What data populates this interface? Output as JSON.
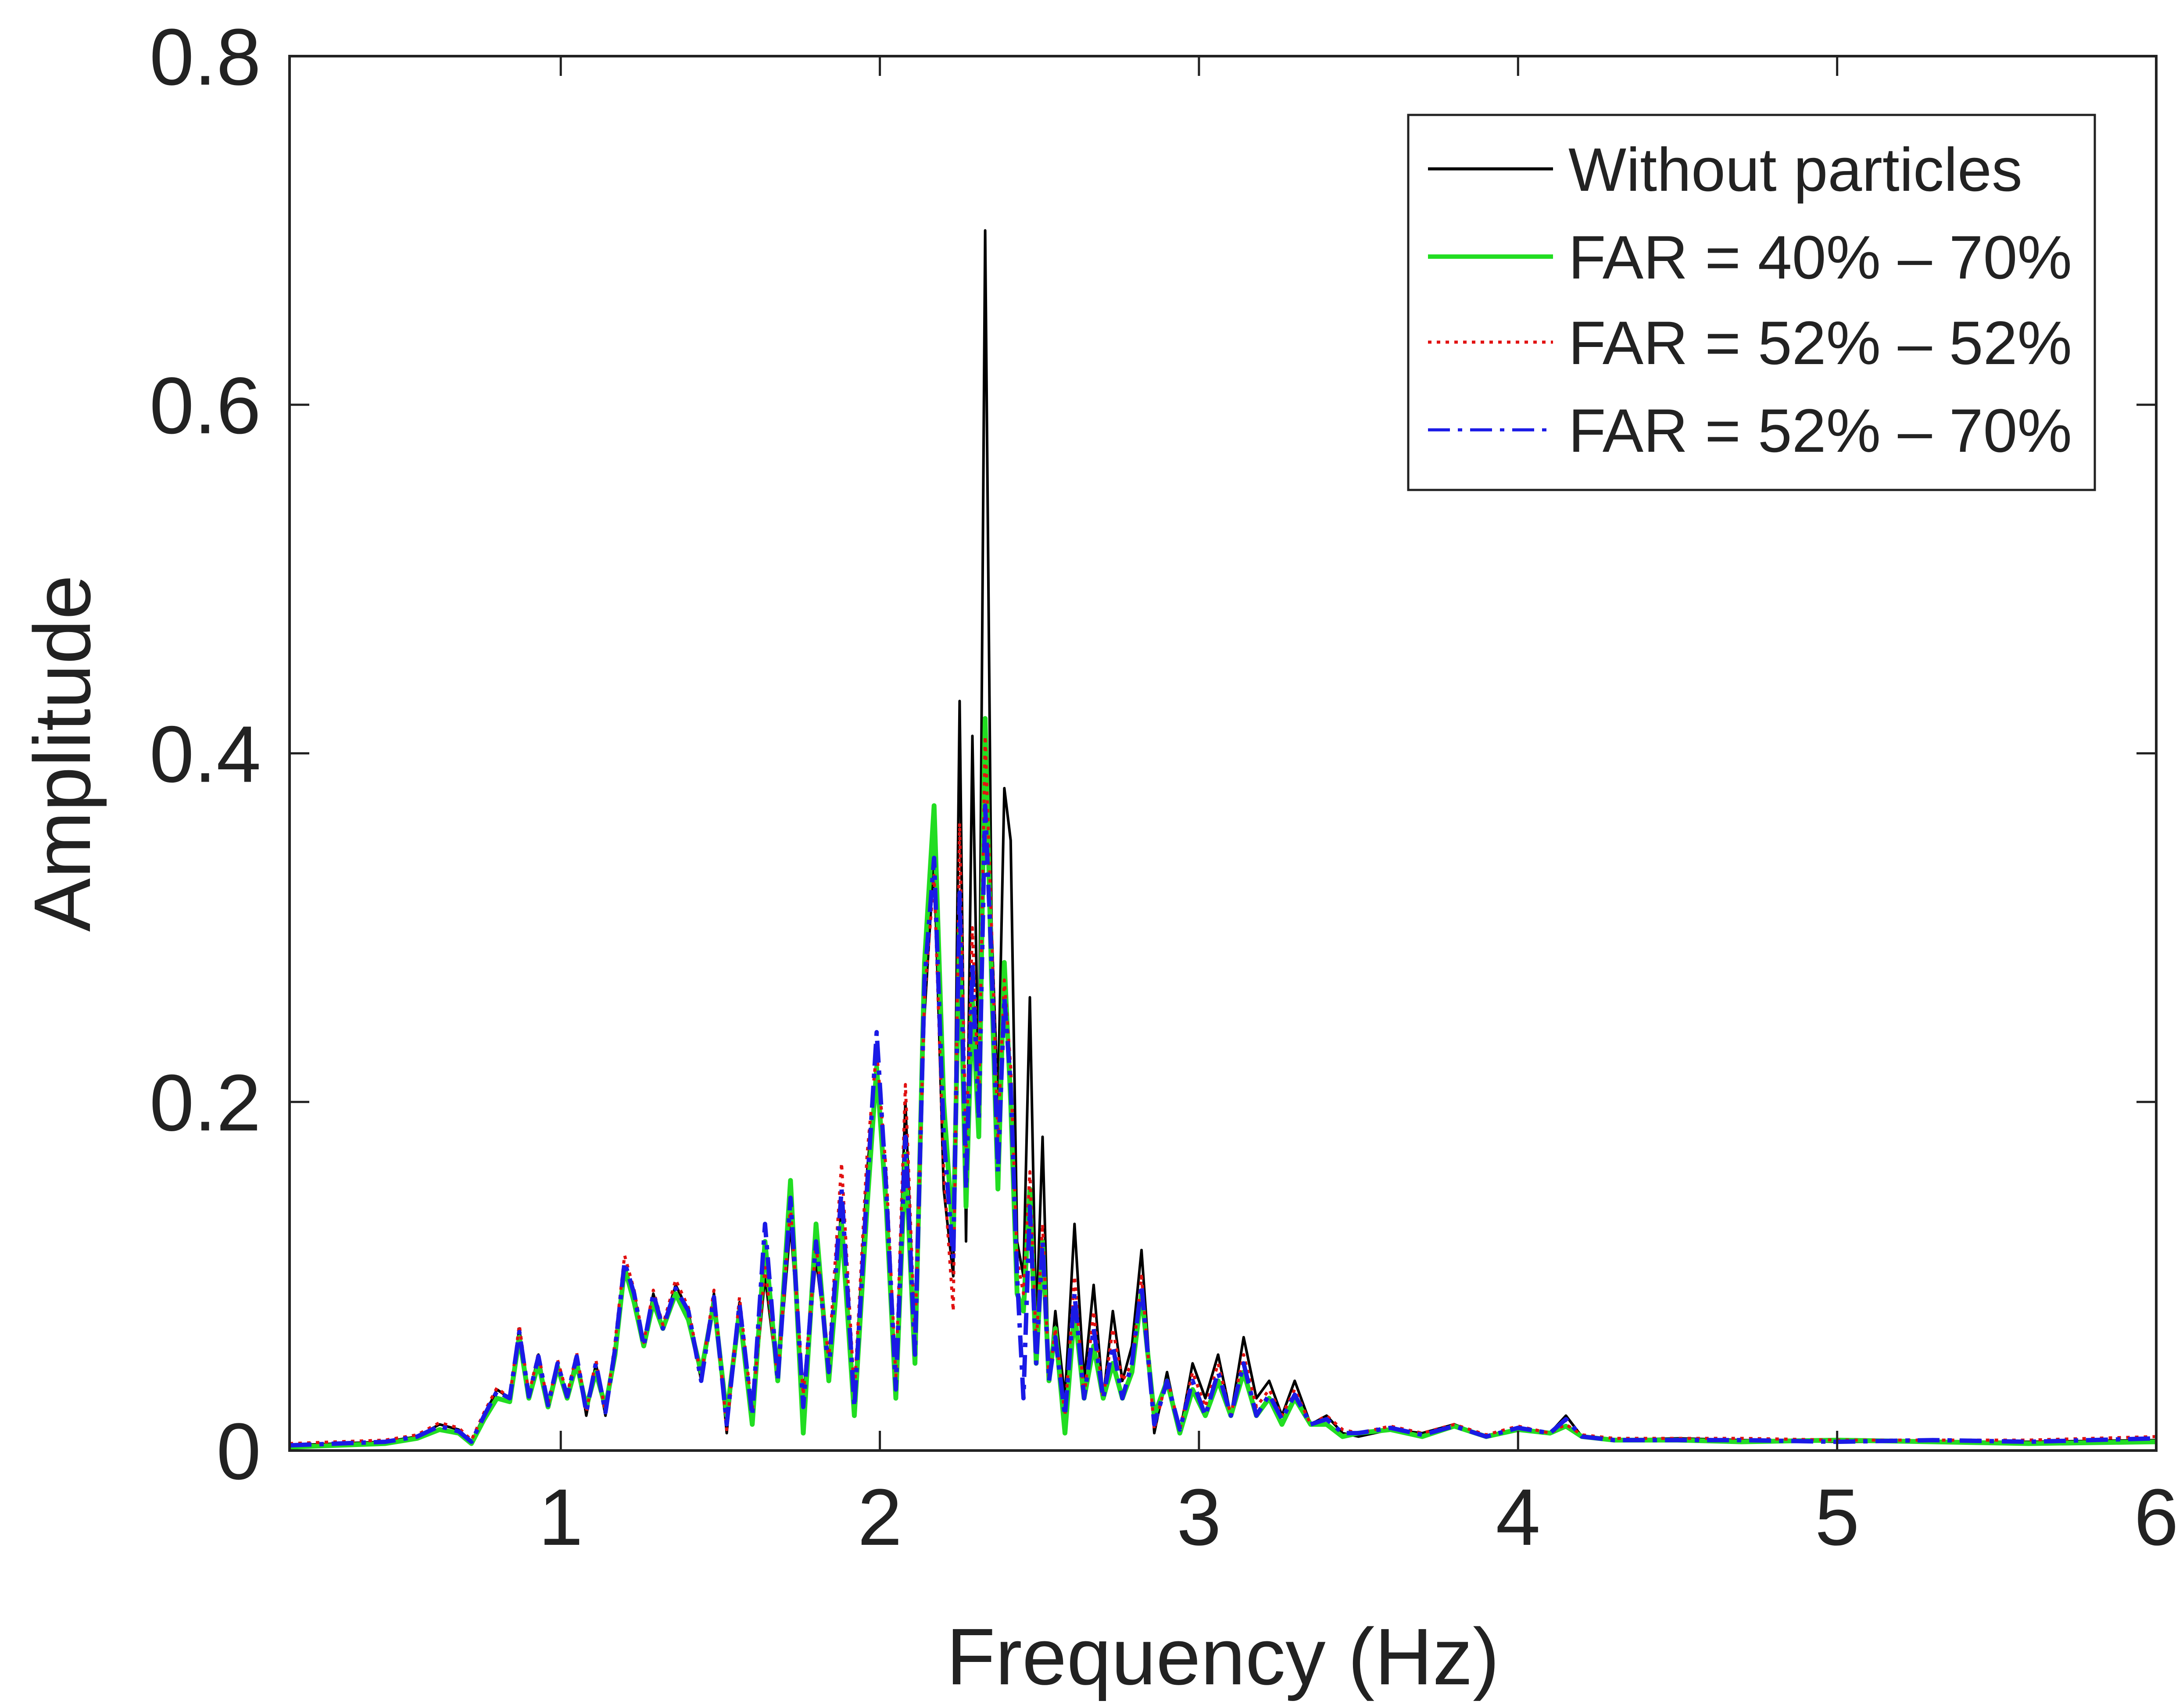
{
  "chart_data": {
    "type": "line",
    "title": "",
    "xlabel": "Frequency (Hz)",
    "ylabel": "Amplitude",
    "xlim": [
      0.15,
      6
    ],
    "ylim": [
      0,
      0.8
    ],
    "xticks": [
      1,
      2,
      3,
      4,
      5,
      6
    ],
    "xtick_labels": [
      "1",
      "2",
      "3",
      "4",
      "5",
      "6"
    ],
    "yticks": [
      0,
      0.2,
      0.4,
      0.6,
      0.8
    ],
    "ytick_labels": [
      "0",
      "0.2",
      "0.4",
      "0.6",
      "0.8"
    ],
    "grid": false,
    "legend_position": "top-right",
    "series": [
      {
        "name": "Without particles",
        "color": "#000000",
        "style": "solid",
        "x": [
          0.15,
          0.3,
          0.45,
          0.55,
          0.62,
          0.68,
          0.72,
          0.76,
          0.8,
          0.84,
          0.87,
          0.9,
          0.93,
          0.96,
          0.99,
          1.02,
          1.05,
          1.08,
          1.11,
          1.14,
          1.17,
          1.2,
          1.23,
          1.26,
          1.29,
          1.32,
          1.36,
          1.4,
          1.44,
          1.48,
          1.52,
          1.56,
          1.6,
          1.64,
          1.68,
          1.72,
          1.76,
          1.8,
          1.84,
          1.88,
          1.92,
          1.96,
          1.99,
          2.02,
          2.05,
          2.08,
          2.11,
          2.14,
          2.17,
          2.2,
          2.23,
          2.25,
          2.27,
          2.29,
          2.31,
          2.33,
          2.35,
          2.37,
          2.39,
          2.41,
          2.43,
          2.45,
          2.47,
          2.49,
          2.51,
          2.53,
          2.55,
          2.58,
          2.61,
          2.64,
          2.67,
          2.7,
          2.73,
          2.76,
          2.79,
          2.82,
          2.86,
          2.9,
          2.94,
          2.98,
          3.02,
          3.06,
          3.1,
          3.14,
          3.18,
          3.22,
          3.26,
          3.3,
          3.35,
          3.4,
          3.45,
          3.5,
          3.6,
          3.7,
          3.8,
          3.9,
          4.0,
          4.1,
          4.15,
          4.2,
          4.3,
          4.5,
          4.7,
          5.0,
          5.3,
          5.6,
          6.0
        ],
        "y": [
          0.003,
          0.004,
          0.005,
          0.008,
          0.015,
          0.012,
          0.005,
          0.02,
          0.035,
          0.03,
          0.07,
          0.03,
          0.055,
          0.025,
          0.05,
          0.03,
          0.055,
          0.02,
          0.05,
          0.02,
          0.06,
          0.1,
          0.09,
          0.06,
          0.09,
          0.07,
          0.095,
          0.08,
          0.04,
          0.09,
          0.01,
          0.085,
          0.02,
          0.1,
          0.04,
          0.13,
          0.03,
          0.11,
          0.05,
          0.14,
          0.03,
          0.16,
          0.22,
          0.15,
          0.04,
          0.2,
          0.06,
          0.25,
          0.34,
          0.15,
          0.1,
          0.43,
          0.12,
          0.41,
          0.2,
          0.7,
          0.3,
          0.2,
          0.38,
          0.35,
          0.12,
          0.1,
          0.26,
          0.07,
          0.18,
          0.04,
          0.08,
          0.03,
          0.13,
          0.04,
          0.095,
          0.03,
          0.08,
          0.04,
          0.06,
          0.115,
          0.01,
          0.045,
          0.01,
          0.05,
          0.03,
          0.055,
          0.02,
          0.065,
          0.03,
          0.04,
          0.02,
          0.04,
          0.015,
          0.02,
          0.01,
          0.008,
          0.012,
          0.01,
          0.015,
          0.008,
          0.012,
          0.01,
          0.02,
          0.008,
          0.006,
          0.007,
          0.006,
          0.005,
          0.005,
          0.005,
          0.006
        ]
      },
      {
        "name": "FAR = 40% – 70%",
        "color": "#22dd22",
        "style": "solid",
        "x": [
          0.15,
          0.3,
          0.45,
          0.55,
          0.62,
          0.68,
          0.72,
          0.76,
          0.8,
          0.84,
          0.87,
          0.9,
          0.93,
          0.96,
          0.99,
          1.02,
          1.05,
          1.08,
          1.11,
          1.14,
          1.17,
          1.2,
          1.23,
          1.26,
          1.29,
          1.32,
          1.36,
          1.4,
          1.44,
          1.48,
          1.52,
          1.56,
          1.6,
          1.64,
          1.68,
          1.72,
          1.76,
          1.8,
          1.84,
          1.88,
          1.92,
          1.96,
          1.99,
          2.02,
          2.05,
          2.08,
          2.11,
          2.14,
          2.17,
          2.2,
          2.23,
          2.25,
          2.27,
          2.29,
          2.31,
          2.33,
          2.35,
          2.37,
          2.39,
          2.41,
          2.43,
          2.45,
          2.47,
          2.49,
          2.51,
          2.53,
          2.55,
          2.58,
          2.61,
          2.64,
          2.67,
          2.7,
          2.73,
          2.76,
          2.79,
          2.82,
          2.86,
          2.9,
          2.94,
          2.98,
          3.02,
          3.06,
          3.1,
          3.14,
          3.18,
          3.22,
          3.26,
          3.3,
          3.35,
          3.4,
          3.45,
          3.5,
          3.6,
          3.7,
          3.8,
          3.9,
          4.0,
          4.1,
          4.15,
          4.2,
          4.3,
          4.5,
          4.7,
          5.0,
          5.3,
          5.6,
          6.0
        ],
        "y": [
          0.002,
          0.003,
          0.004,
          0.007,
          0.012,
          0.01,
          0.004,
          0.018,
          0.03,
          0.028,
          0.065,
          0.03,
          0.05,
          0.025,
          0.048,
          0.03,
          0.05,
          0.025,
          0.045,
          0.025,
          0.055,
          0.105,
          0.085,
          0.06,
          0.085,
          0.07,
          0.09,
          0.075,
          0.045,
          0.085,
          0.02,
          0.08,
          0.015,
          0.12,
          0.04,
          0.155,
          0.01,
          0.13,
          0.04,
          0.13,
          0.02,
          0.14,
          0.22,
          0.14,
          0.03,
          0.17,
          0.05,
          0.28,
          0.37,
          0.2,
          0.12,
          0.3,
          0.14,
          0.26,
          0.18,
          0.42,
          0.27,
          0.15,
          0.28,
          0.2,
          0.09,
          0.08,
          0.15,
          0.05,
          0.12,
          0.04,
          0.07,
          0.01,
          0.08,
          0.03,
          0.06,
          0.03,
          0.05,
          0.03,
          0.045,
          0.09,
          0.02,
          0.04,
          0.01,
          0.035,
          0.02,
          0.04,
          0.02,
          0.045,
          0.02,
          0.03,
          0.015,
          0.03,
          0.015,
          0.015,
          0.008,
          0.01,
          0.012,
          0.008,
          0.014,
          0.008,
          0.012,
          0.01,
          0.014,
          0.008,
          0.006,
          0.006,
          0.005,
          0.006,
          0.005,
          0.004,
          0.005
        ]
      },
      {
        "name": "FAR = 52% – 52%",
        "color": "#e11111",
        "style": "dotted",
        "x": [
          0.15,
          0.3,
          0.45,
          0.55,
          0.62,
          0.68,
          0.72,
          0.76,
          0.8,
          0.84,
          0.87,
          0.9,
          0.93,
          0.96,
          0.99,
          1.02,
          1.05,
          1.08,
          1.11,
          1.14,
          1.17,
          1.2,
          1.23,
          1.26,
          1.29,
          1.32,
          1.36,
          1.4,
          1.44,
          1.48,
          1.52,
          1.56,
          1.6,
          1.64,
          1.68,
          1.72,
          1.76,
          1.8,
          1.84,
          1.88,
          1.92,
          1.96,
          1.99,
          2.02,
          2.05,
          2.08,
          2.11,
          2.14,
          2.17,
          2.2,
          2.23,
          2.25,
          2.27,
          2.29,
          2.31,
          2.33,
          2.35,
          2.37,
          2.39,
          2.41,
          2.43,
          2.45,
          2.47,
          2.49,
          2.51,
          2.53,
          2.55,
          2.58,
          2.61,
          2.64,
          2.67,
          2.7,
          2.73,
          2.76,
          2.79,
          2.82,
          2.86,
          2.9,
          2.94,
          2.98,
          3.02,
          3.06,
          3.1,
          3.14,
          3.18,
          3.22,
          3.26,
          3.3,
          3.35,
          3.4,
          3.45,
          3.5,
          3.6,
          3.7,
          3.8,
          3.9,
          4.0,
          4.1,
          4.15,
          4.2,
          4.3,
          4.5,
          4.7,
          5.0,
          5.3,
          5.6,
          6.0
        ],
        "y": [
          0.004,
          0.005,
          0.006,
          0.009,
          0.016,
          0.013,
          0.006,
          0.022,
          0.036,
          0.03,
          0.072,
          0.032,
          0.056,
          0.026,
          0.052,
          0.032,
          0.056,
          0.022,
          0.052,
          0.022,
          0.062,
          0.112,
          0.092,
          0.062,
          0.092,
          0.072,
          0.098,
          0.082,
          0.042,
          0.092,
          0.012,
          0.088,
          0.022,
          0.105,
          0.042,
          0.14,
          0.032,
          0.118,
          0.052,
          0.165,
          0.032,
          0.17,
          0.23,
          0.16,
          0.042,
          0.21,
          0.062,
          0.26,
          0.33,
          0.16,
          0.08,
          0.36,
          0.17,
          0.3,
          0.2,
          0.41,
          0.3,
          0.18,
          0.27,
          0.22,
          0.11,
          0.09,
          0.16,
          0.06,
          0.13,
          0.04,
          0.07,
          0.02,
          0.1,
          0.03,
          0.08,
          0.03,
          0.07,
          0.04,
          0.05,
          0.1,
          0.012,
          0.042,
          0.012,
          0.045,
          0.025,
          0.05,
          0.02,
          0.055,
          0.025,
          0.035,
          0.02,
          0.035,
          0.015,
          0.02,
          0.012,
          0.01,
          0.014,
          0.01,
          0.015,
          0.009,
          0.014,
          0.01,
          0.015,
          0.009,
          0.007,
          0.007,
          0.007,
          0.006,
          0.006,
          0.006,
          0.008
        ]
      },
      {
        "name": "FAR = 52% – 70%",
        "color": "#1a1ae6",
        "style": "dashdot",
        "x": [
          0.15,
          0.3,
          0.45,
          0.55,
          0.62,
          0.68,
          0.72,
          0.76,
          0.8,
          0.84,
          0.87,
          0.9,
          0.93,
          0.96,
          0.99,
          1.02,
          1.05,
          1.08,
          1.11,
          1.14,
          1.17,
          1.2,
          1.23,
          1.26,
          1.29,
          1.32,
          1.36,
          1.4,
          1.44,
          1.48,
          1.52,
          1.56,
          1.6,
          1.64,
          1.68,
          1.72,
          1.76,
          1.8,
          1.84,
          1.88,
          1.92,
          1.96,
          1.99,
          2.02,
          2.05,
          2.08,
          2.11,
          2.14,
          2.17,
          2.2,
          2.23,
          2.25,
          2.27,
          2.29,
          2.31,
          2.33,
          2.35,
          2.37,
          2.39,
          2.41,
          2.43,
          2.45,
          2.47,
          2.49,
          2.51,
          2.53,
          2.55,
          2.58,
          2.61,
          2.64,
          2.67,
          2.7,
          2.73,
          2.76,
          2.79,
          2.82,
          2.86,
          2.9,
          2.94,
          2.98,
          3.02,
          3.06,
          3.1,
          3.14,
          3.18,
          3.22,
          3.26,
          3.3,
          3.35,
          3.4,
          3.45,
          3.5,
          3.6,
          3.7,
          3.8,
          3.9,
          4.0,
          4.1,
          4.15,
          4.2,
          4.3,
          4.5,
          4.7,
          5.0,
          5.3,
          5.6,
          6.0
        ],
        "y": [
          0.003,
          0.004,
          0.005,
          0.008,
          0.014,
          0.011,
          0.005,
          0.02,
          0.034,
          0.03,
          0.068,
          0.031,
          0.054,
          0.026,
          0.05,
          0.031,
          0.054,
          0.022,
          0.05,
          0.022,
          0.058,
          0.108,
          0.09,
          0.06,
          0.09,
          0.07,
          0.093,
          0.08,
          0.04,
          0.088,
          0.015,
          0.084,
          0.02,
          0.13,
          0.04,
          0.145,
          0.025,
          0.12,
          0.045,
          0.15,
          0.025,
          0.15,
          0.24,
          0.15,
          0.035,
          0.18,
          0.055,
          0.27,
          0.34,
          0.18,
          0.11,
          0.32,
          0.15,
          0.28,
          0.19,
          0.37,
          0.28,
          0.16,
          0.26,
          0.21,
          0.1,
          0.03,
          0.14,
          0.05,
          0.12,
          0.04,
          0.065,
          0.02,
          0.09,
          0.03,
          0.07,
          0.03,
          0.06,
          0.03,
          0.05,
          0.095,
          0.015,
          0.04,
          0.012,
          0.04,
          0.02,
          0.045,
          0.02,
          0.05,
          0.02,
          0.032,
          0.018,
          0.032,
          0.015,
          0.018,
          0.01,
          0.01,
          0.013,
          0.009,
          0.014,
          0.008,
          0.013,
          0.01,
          0.018,
          0.008,
          0.006,
          0.006,
          0.006,
          0.005,
          0.006,
          0.005,
          0.007
        ]
      }
    ]
  }
}
